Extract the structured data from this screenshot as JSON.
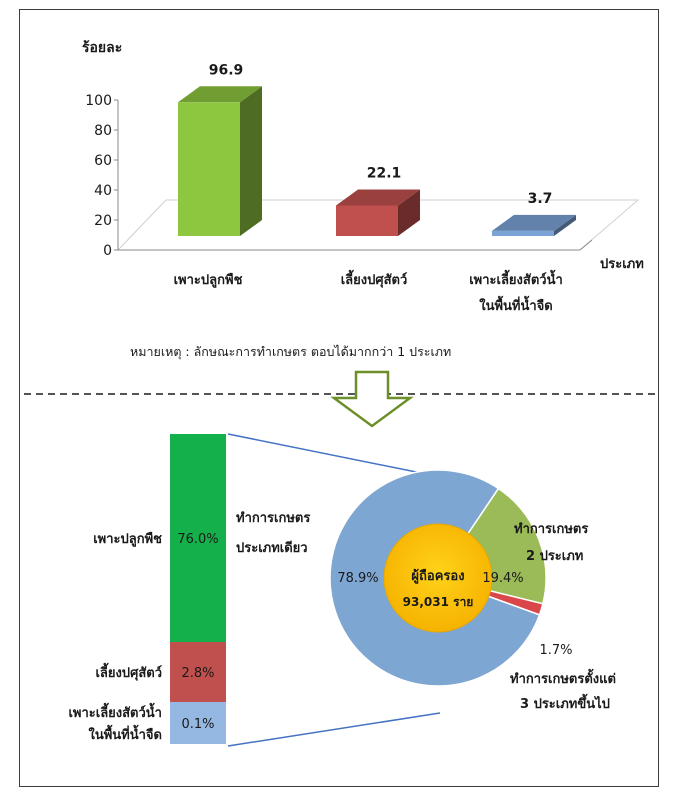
{
  "note": "หมายเหตุ : ลักษณะการทำเกษตร ตอบได้มากกว่า 1 ประเภท",
  "chart_data": [
    {
      "type": "bar",
      "ylabel": "ร้อยละ",
      "xlabel": "ประเภท",
      "ylim": [
        0,
        100
      ],
      "yticks": [
        "0",
        "20",
        "40",
        "60",
        "80",
        "100"
      ],
      "categories": [
        [
          "เพาะปลูกพืช"
        ],
        [
          "เลี้ยงปศุสัตว์"
        ],
        [
          "เพาะเลี้ยงสัตว์น้ำ",
          "ในพื้นที่น้ำจืด"
        ]
      ],
      "values": [
        96.9,
        22.1,
        3.7
      ],
      "value_labels": [
        "96.9",
        "22.1",
        "3.7"
      ],
      "colors": [
        "#8dc63f",
        "#c0504d",
        "#7ba3d6"
      ],
      "style": "3d",
      "grid": false
    },
    {
      "type": "bar",
      "stacked": true,
      "title": "ทำการเกษตรประเภทเดียว",
      "categories": [
        [
          "เพาะปลูกพืช"
        ],
        [
          "เลี้ยงปศุสัตว์"
        ],
        [
          "เพาะเลี้ยงสัตว์น้ำ",
          "ในพื้นที่น้ำจืด"
        ]
      ],
      "values": [
        76.0,
        2.8,
        0.1
      ],
      "value_labels": [
        "76.0%",
        "2.8%",
        "0.1%"
      ],
      "colors": [
        "#14b04b",
        "#c0504d",
        "#95b8e3"
      ],
      "title_lines": [
        "ทำการเกษตร",
        "ประเภทเดียว"
      ]
    },
    {
      "type": "pie",
      "center_label": [
        "ผู้ถือครอง",
        "93,031 ราย"
      ],
      "slices": [
        {
          "label": "ทำการเกษตรประเภทเดียว",
          "value": 78.9,
          "value_label": "78.9%",
          "color": "#7ea6d3"
        },
        {
          "label": "ทำการเกษตร 2 ประเภท",
          "value": 19.4,
          "value_label": "19.4%",
          "color": "#9bbb59",
          "label_lines": [
            "ทำการเกษตร",
            "2 ประเภท"
          ]
        },
        {
          "label": "ทำการเกษตรตั้งแต่ 3 ประเภทขึ้นไป",
          "value": 1.7,
          "value_label": "1.7%",
          "color": "#d9474a",
          "label_lines": [
            "ทำการเกษตรตั้งแต่",
            "3 ประเภทขึ้นไป"
          ]
        }
      ]
    }
  ]
}
